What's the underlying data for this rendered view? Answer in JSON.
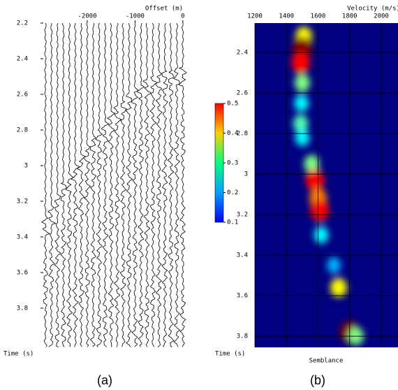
{
  "chart_data": [
    {
      "type": "wiggle",
      "x_label": "Offset (m)",
      "y_label": "Time (s)",
      "caption": "(a)",
      "x": [
        -2875,
        -2750,
        -2625,
        -2500,
        -2375,
        -2250,
        -2125,
        -2000,
        -1875,
        -1750,
        -1625,
        -1500,
        -1375,
        -1250,
        -1125,
        -1000,
        -875,
        -750,
        -625,
        -500,
        -375,
        -250,
        -125,
        0
      ],
      "values": [
        3.29,
        3.23,
        3.16,
        3.1,
        3.05,
        2.99,
        2.94,
        2.89,
        2.84,
        2.79,
        2.75,
        2.7,
        2.67,
        2.63,
        2.6,
        2.57,
        2.54,
        2.52,
        2.5,
        2.48,
        2.47,
        2.46,
        2.45,
        2.45
      ],
      "xlim": [
        -2920,
        90
      ],
      "xticks": [
        -2000,
        -1000,
        0
      ],
      "ylim": [
        2.2,
        4.02
      ],
      "yticks": [
        2.2,
        2.4,
        2.6,
        2.8,
        3,
        3.2,
        3.4,
        3.6,
        3.8
      ]
    },
    {
      "type": "heatmap",
      "x_label": "Velocity (m/s)",
      "y_label": "Time (s)",
      "colorbar_label": "Semblance",
      "caption": "(b)",
      "x": [
        1510,
        1500,
        1490,
        1500,
        1495,
        1490,
        1500,
        1560,
        1580,
        1600,
        1610,
        1620,
        1700,
        1730,
        1800,
        1840
      ],
      "y": [
        2.32,
        2.38,
        2.45,
        2.55,
        2.65,
        2.75,
        2.82,
        2.95,
        3.03,
        3.12,
        3.18,
        3.3,
        3.45,
        3.56,
        3.78,
        3.8
      ],
      "values": [
        0.35,
        0.5,
        0.45,
        0.3,
        0.25,
        0.28,
        0.25,
        0.3,
        0.45,
        0.4,
        0.45,
        0.25,
        0.22,
        0.35,
        0.5,
        0.3
      ],
      "xlim": [
        1200,
        2106
      ],
      "xticks": [
        1200,
        1400,
        1600,
        1800,
        2000
      ],
      "ylim": [
        2.255,
        3.855
      ],
      "yticks": [
        2.4,
        2.6,
        2.8,
        3,
        3.2,
        3.4,
        3.6,
        3.8
      ],
      "clim": [
        0.1,
        0.5
      ],
      "cticks": [
        0.1,
        0.2,
        0.3,
        0.4,
        0.5
      ],
      "grid": true
    }
  ]
}
